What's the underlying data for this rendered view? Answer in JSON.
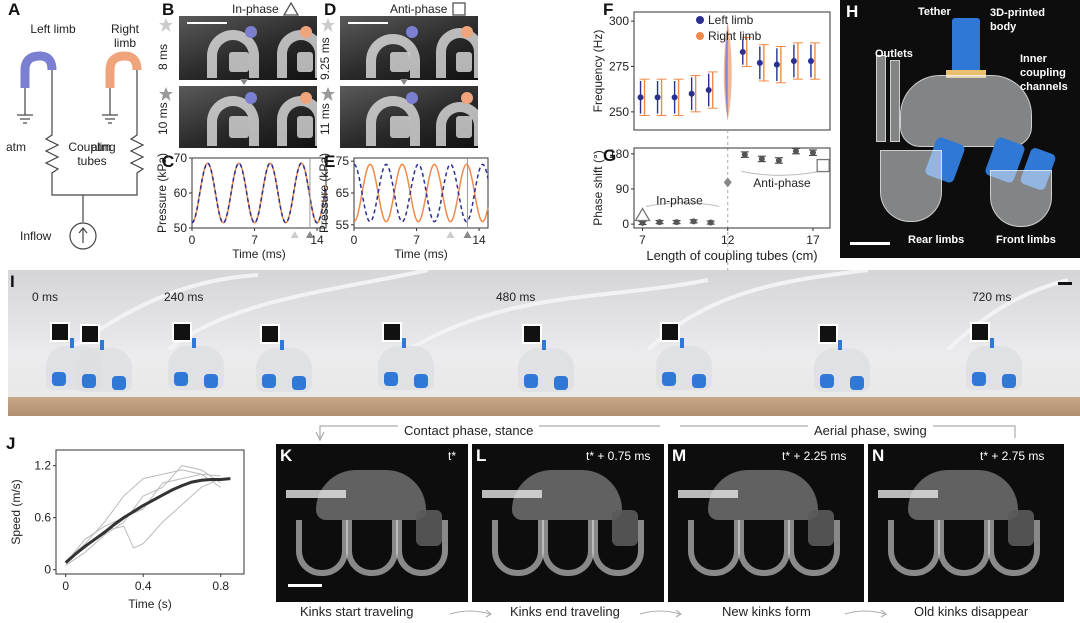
{
  "panels": {
    "A": {
      "label": "A",
      "left_limb": "Left limb",
      "right_limb": "Right limb",
      "atm_left": "atm",
      "atm_right": "atm",
      "coupling": "Coupling tubes",
      "inflow": "Inflow",
      "left_color": "#7b7fd1",
      "right_color": "#f0a47c"
    },
    "B": {
      "label": "B",
      "title": "In-phase",
      "t1": "8 ms",
      "t2": "10 ms"
    },
    "C": {
      "label": "C",
      "ylabel": "Pressure (kPa)",
      "xlabel": "Time (ms)"
    },
    "D": {
      "label": "D",
      "title": "Anti-phase",
      "t1": "9.25 ms",
      "t2": "11 ms"
    },
    "E": {
      "label": "E",
      "ylabel": "Pressure (kPa)",
      "xlabel": "Time (ms)"
    },
    "F": {
      "label": "F",
      "ylabel": "Frequency (Hz)",
      "legend_left": "Left limb",
      "legend_right": "Right limb"
    },
    "G": {
      "label": "G",
      "ylabel": "Phase shift (°)",
      "xlabel": "Length of coupling tubes (cm)",
      "inphase": "In-phase",
      "antiphase": "Anti-phase"
    },
    "H": {
      "label": "H",
      "tether": "Tether",
      "body": "3D-printed body",
      "outlets": "Outlets",
      "inner": "Inner coupling channels",
      "rear": "Rear limbs",
      "front": "Front limbs"
    },
    "I": {
      "label": "I",
      "times": [
        "0 ms",
        "240 ms",
        "480 ms",
        "720 ms"
      ]
    },
    "J": {
      "label": "J",
      "ylabel": "Speed (m/s)",
      "xlabel": "Time (s)"
    },
    "K": {
      "label": "K",
      "time": "t*",
      "caption": "Kinks start traveling"
    },
    "L": {
      "label": "L",
      "time": "t* + 0.75 ms",
      "caption": "Kinks end traveling"
    },
    "M": {
      "label": "M",
      "time": "t* + 2.25 ms",
      "caption": "New kinks form"
    },
    "N": {
      "label": "N",
      "time": "t* + 2.75 ms",
      "caption": "Old kinks disappear"
    },
    "phase_labels": {
      "contact": "Contact phase, stance",
      "aerial": "Aerial phase, swing"
    }
  },
  "colors": {
    "blue": "#2b2f8f",
    "orange": "#f08a4b",
    "blue_light": "#7b7fd1",
    "orange_light": "#f0a47c",
    "limb_blue": "#2f78d6"
  },
  "chart_data": [
    {
      "id": "C",
      "type": "line",
      "xlabel": "Time (ms)",
      "ylabel": "Pressure (kPa)",
      "xlim": [
        0,
        15
      ],
      "ylim": [
        50,
        70
      ],
      "xticks": [
        0,
        7,
        14
      ],
      "yticks": [
        50,
        60,
        70
      ],
      "series": [
        {
          "style": "solid",
          "color": "#f08a4b",
          "period_ms": 3.5,
          "phase": 0,
          "min": 51.5,
          "max": 68.5
        },
        {
          "style": "dashed",
          "color": "#2b2f8f",
          "period_ms": 3.5,
          "phase": 0,
          "min": 51.5,
          "max": 68.5
        }
      ]
    },
    {
      "id": "E",
      "type": "line",
      "xlabel": "Time (ms)",
      "ylabel": "Pressure (kPa)",
      "xlim": [
        0,
        15
      ],
      "ylim": [
        54,
        76
      ],
      "xticks": [
        0,
        7,
        14
      ],
      "yticks": [
        55,
        65,
        75
      ],
      "series": [
        {
          "style": "solid",
          "color": "#f08a4b",
          "period_ms": 3.6,
          "phase": 0,
          "min": 56,
          "max": 74
        },
        {
          "style": "dashed",
          "color": "#2b2f8f",
          "period_ms": 3.6,
          "phase": 0.5,
          "min": 56,
          "max": 74
        }
      ]
    },
    {
      "id": "F",
      "type": "scatter",
      "xlabel": "Length of coupling tubes (cm)",
      "ylabel": "Frequency (Hz)",
      "xlim": [
        6.5,
        18
      ],
      "ylim": [
        240,
        305
      ],
      "yticks": [
        250,
        275,
        300
      ],
      "x": [
        7,
        8,
        9,
        10,
        11,
        13,
        14,
        15,
        16,
        17
      ],
      "series": [
        {
          "name": "Left limb",
          "color": "#2b2f8f",
          "values": [
            258,
            258,
            258,
            260,
            262,
            283,
            277,
            276,
            278,
            278
          ],
          "err": [
            10,
            10,
            10,
            10,
            10,
            8,
            10,
            10,
            10,
            10
          ]
        },
        {
          "name": "Right limb",
          "color": "#f08a4b",
          "values": [
            258,
            258,
            258,
            260,
            262,
            283,
            277,
            276,
            278,
            278
          ],
          "err": [
            10,
            10,
            10,
            10,
            10,
            8,
            10,
            10,
            10,
            10
          ]
        }
      ],
      "transition_x": 12
    },
    {
      "id": "G",
      "type": "scatter",
      "xlabel": "Length of coupling tubes (cm)",
      "ylabel": "Phase shift (°)",
      "xlim": [
        6.5,
        18
      ],
      "ylim": [
        -10,
        195
      ],
      "xticks": [
        7,
        12,
        17
      ],
      "yticks": [
        0,
        90,
        180
      ],
      "x": [
        7,
        8,
        9,
        10,
        11,
        13,
        14,
        15,
        16,
        17
      ],
      "values": [
        3,
        5,
        5,
        7,
        4,
        178,
        167,
        163,
        187,
        183
      ],
      "err": [
        4,
        4,
        4,
        4,
        4,
        7,
        7,
        7,
        7,
        7
      ],
      "transition": {
        "x": 12,
        "y": 107
      }
    },
    {
      "id": "J",
      "type": "line",
      "xlabel": "Time (s)",
      "ylabel": "Speed (m/s)",
      "xlim": [
        -0.05,
        0.92
      ],
      "ylim": [
        -0.05,
        1.38
      ],
      "xticks": [
        0,
        0.4,
        0.8
      ],
      "yticks": [
        0,
        0.6,
        1.2
      ],
      "mean": {
        "x": [
          0,
          0.05,
          0.1,
          0.15,
          0.2,
          0.25,
          0.3,
          0.35,
          0.4,
          0.45,
          0.5,
          0.55,
          0.6,
          0.65,
          0.7,
          0.75,
          0.8,
          0.85
        ],
        "y": [
          0.08,
          0.18,
          0.27,
          0.35,
          0.43,
          0.52,
          0.6,
          0.67,
          0.74,
          0.8,
          0.86,
          0.92,
          0.97,
          1.01,
          1.03,
          1.04,
          1.04,
          1.05
        ]
      },
      "trials": [
        {
          "x": [
            0,
            0.1,
            0.2,
            0.3,
            0.4,
            0.5,
            0.6,
            0.7,
            0.8
          ],
          "y": [
            0.1,
            0.3,
            0.55,
            0.85,
            1.05,
            1.1,
            1.15,
            1.1,
            1.08
          ]
        },
        {
          "x": [
            0,
            0.1,
            0.2,
            0.3,
            0.4,
            0.5,
            0.6,
            0.7,
            0.8
          ],
          "y": [
            0.05,
            0.2,
            0.4,
            0.55,
            0.85,
            0.95,
            1.2,
            1.15,
            1.0
          ]
        },
        {
          "x": [
            0,
            0.1,
            0.2,
            0.3,
            0.35,
            0.4,
            0.5,
            0.6,
            0.7,
            0.8
          ],
          "y": [
            0.1,
            0.25,
            0.45,
            0.5,
            0.25,
            0.3,
            0.55,
            0.75,
            0.95,
            1.05
          ]
        },
        {
          "x": [
            0,
            0.1,
            0.2,
            0.3,
            0.4,
            0.5,
            0.6,
            0.7,
            0.8
          ],
          "y": [
            0.08,
            0.35,
            0.5,
            0.6,
            0.7,
            1.0,
            1.05,
            1.1,
            0.95
          ]
        }
      ]
    }
  ]
}
